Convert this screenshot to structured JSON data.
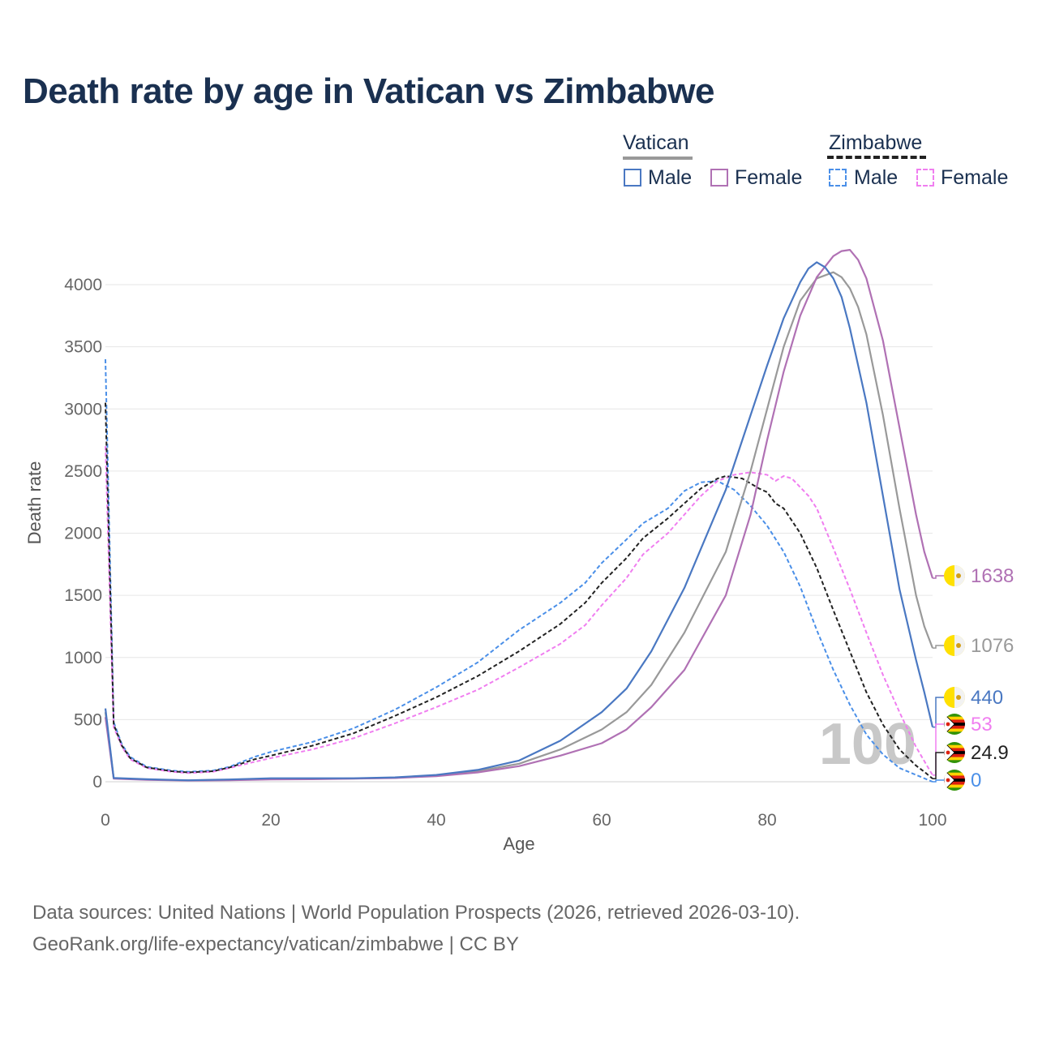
{
  "title": "Death rate by age in Vatican vs Zimbabwe",
  "legend": {
    "vatican": "Vatican",
    "zimbabwe": "Zimbabwe",
    "male": "Male",
    "female": "Female"
  },
  "footer": {
    "line1": "Data sources: United Nations | World Population Prospects (2026, retrieved 2026-03-10).",
    "line2": "GeoRank.org/life-expectancy/vatican/zimbabwe | CC BY"
  },
  "watermark": "100",
  "colors": {
    "vatican_male": "#4a78c2",
    "vatican_female": "#b071b4",
    "vatican_total": "#999999",
    "zimbabwe_male": "#4a8fe8",
    "zimbabwe_female": "#f07ef0",
    "zimbabwe_total": "#222222",
    "grid": "#e6e6e6",
    "title": "#1a3050"
  },
  "chart_data": {
    "type": "line",
    "xlabel": "Age",
    "ylabel": "Death rate",
    "xlim": [
      0,
      100
    ],
    "ylim": [
      0,
      4300
    ],
    "xticks": [
      0,
      20,
      40,
      60,
      80,
      100
    ],
    "yticks": [
      0,
      500,
      1000,
      1500,
      2000,
      2500,
      3000,
      3500,
      4000
    ],
    "grid": true,
    "legend_position": "top-right",
    "series": [
      {
        "name": "Vatican Male",
        "country": "Vatican",
        "sex": "Male",
        "style": "solid",
        "end_label": "440",
        "points": [
          [
            0,
            590
          ],
          [
            1,
            30
          ],
          [
            5,
            20
          ],
          [
            10,
            12
          ],
          [
            15,
            18
          ],
          [
            20,
            28
          ],
          [
            25,
            28
          ],
          [
            30,
            28
          ],
          [
            35,
            35
          ],
          [
            40,
            55
          ],
          [
            45,
            95
          ],
          [
            50,
            170
          ],
          [
            55,
            330
          ],
          [
            60,
            560
          ],
          [
            63,
            750
          ],
          [
            66,
            1050
          ],
          [
            70,
            1560
          ],
          [
            75,
            2350
          ],
          [
            78,
            2950
          ],
          [
            80,
            3350
          ],
          [
            82,
            3730
          ],
          [
            84,
            4020
          ],
          [
            85,
            4130
          ],
          [
            86,
            4180
          ],
          [
            87,
            4140
          ],
          [
            88,
            4050
          ],
          [
            89,
            3900
          ],
          [
            90,
            3650
          ],
          [
            92,
            3050
          ],
          [
            94,
            2300
          ],
          [
            96,
            1550
          ],
          [
            98,
            980
          ],
          [
            99,
            720
          ],
          [
            100,
            440
          ]
        ]
      },
      {
        "name": "Vatican Female",
        "country": "Vatican",
        "sex": "Female",
        "style": "solid",
        "end_label": "1638",
        "points": [
          [
            0,
            520
          ],
          [
            1,
            25
          ],
          [
            5,
            15
          ],
          [
            10,
            10
          ],
          [
            15,
            12
          ],
          [
            20,
            18
          ],
          [
            25,
            20
          ],
          [
            30,
            25
          ],
          [
            35,
            30
          ],
          [
            40,
            45
          ],
          [
            45,
            75
          ],
          [
            50,
            125
          ],
          [
            55,
            210
          ],
          [
            60,
            310
          ],
          [
            63,
            420
          ],
          [
            66,
            600
          ],
          [
            70,
            900
          ],
          [
            75,
            1500
          ],
          [
            78,
            2150
          ],
          [
            80,
            2750
          ],
          [
            82,
            3300
          ],
          [
            84,
            3750
          ],
          [
            86,
            4060
          ],
          [
            88,
            4230
          ],
          [
            89,
            4270
          ],
          [
            90,
            4280
          ],
          [
            91,
            4200
          ],
          [
            92,
            4050
          ],
          [
            94,
            3550
          ],
          [
            96,
            2850
          ],
          [
            98,
            2150
          ],
          [
            99,
            1850
          ],
          [
            100,
            1638
          ]
        ]
      },
      {
        "name": "Vatican Total",
        "country": "Vatican",
        "sex": "Total",
        "style": "solid",
        "end_label": "1076",
        "points": [
          [
            0,
            560
          ],
          [
            1,
            28
          ],
          [
            5,
            18
          ],
          [
            10,
            11
          ],
          [
            15,
            15
          ],
          [
            20,
            23
          ],
          [
            25,
            24
          ],
          [
            30,
            26
          ],
          [
            35,
            32
          ],
          [
            40,
            50
          ],
          [
            45,
            85
          ],
          [
            50,
            145
          ],
          [
            55,
            260
          ],
          [
            60,
            420
          ],
          [
            63,
            560
          ],
          [
            66,
            780
          ],
          [
            70,
            1200
          ],
          [
            75,
            1850
          ],
          [
            78,
            2500
          ],
          [
            80,
            3000
          ],
          [
            82,
            3500
          ],
          [
            84,
            3870
          ],
          [
            86,
            4050
          ],
          [
            88,
            4100
          ],
          [
            89,
            4060
          ],
          [
            90,
            3970
          ],
          [
            91,
            3820
          ],
          [
            92,
            3600
          ],
          [
            94,
            2950
          ],
          [
            96,
            2200
          ],
          [
            98,
            1500
          ],
          [
            99,
            1250
          ],
          [
            100,
            1076
          ]
        ]
      },
      {
        "name": "Zimbabwe Male",
        "country": "Zimbabwe",
        "sex": "Male",
        "style": "dashed",
        "end_label": "0",
        "points": [
          [
            0,
            3400
          ],
          [
            1,
            480
          ],
          [
            2,
            300
          ],
          [
            3,
            200
          ],
          [
            5,
            120
          ],
          [
            8,
            90
          ],
          [
            10,
            80
          ],
          [
            13,
            90
          ],
          [
            15,
            120
          ],
          [
            18,
            200
          ],
          [
            20,
            240
          ],
          [
            25,
            320
          ],
          [
            30,
            430
          ],
          [
            35,
            580
          ],
          [
            40,
            760
          ],
          [
            45,
            960
          ],
          [
            50,
            1220
          ],
          [
            55,
            1440
          ],
          [
            58,
            1600
          ],
          [
            60,
            1760
          ],
          [
            63,
            1950
          ],
          [
            65,
            2080
          ],
          [
            68,
            2200
          ],
          [
            70,
            2340
          ],
          [
            72,
            2410
          ],
          [
            74,
            2420
          ],
          [
            76,
            2350
          ],
          [
            78,
            2220
          ],
          [
            80,
            2060
          ],
          [
            82,
            1850
          ],
          [
            84,
            1570
          ],
          [
            86,
            1220
          ],
          [
            88,
            900
          ],
          [
            90,
            620
          ],
          [
            92,
            380
          ],
          [
            94,
            220
          ],
          [
            96,
            110
          ],
          [
            98,
            55
          ],
          [
            100,
            0
          ]
        ]
      },
      {
        "name": "Zimbabwe Female",
        "country": "Zimbabwe",
        "sex": "Female",
        "style": "dashed",
        "end_label": "53",
        "points": [
          [
            0,
            2700
          ],
          [
            1,
            440
          ],
          [
            2,
            280
          ],
          [
            3,
            180
          ],
          [
            5,
            110
          ],
          [
            8,
            80
          ],
          [
            10,
            70
          ],
          [
            13,
            80
          ],
          [
            15,
            110
          ],
          [
            18,
            160
          ],
          [
            20,
            190
          ],
          [
            25,
            260
          ],
          [
            30,
            350
          ],
          [
            35,
            470
          ],
          [
            40,
            600
          ],
          [
            45,
            740
          ],
          [
            50,
            920
          ],
          [
            55,
            1110
          ],
          [
            58,
            1260
          ],
          [
            60,
            1420
          ],
          [
            63,
            1640
          ],
          [
            65,
            1830
          ],
          [
            68,
            2000
          ],
          [
            70,
            2150
          ],
          [
            72,
            2300
          ],
          [
            74,
            2420
          ],
          [
            76,
            2470
          ],
          [
            78,
            2490
          ],
          [
            80,
            2470
          ],
          [
            81,
            2420
          ],
          [
            82,
            2460
          ],
          [
            83,
            2440
          ],
          [
            85,
            2300
          ],
          [
            86,
            2200
          ],
          [
            88,
            1880
          ],
          [
            90,
            1550
          ],
          [
            92,
            1200
          ],
          [
            94,
            860
          ],
          [
            96,
            560
          ],
          [
            98,
            280
          ],
          [
            100,
            53
          ]
        ]
      },
      {
        "name": "Zimbabwe Total",
        "country": "Zimbabwe",
        "sex": "Total",
        "style": "dashed",
        "end_label": "24.9",
        "points": [
          [
            0,
            3050
          ],
          [
            1,
            460
          ],
          [
            2,
            290
          ],
          [
            3,
            190
          ],
          [
            5,
            115
          ],
          [
            8,
            85
          ],
          [
            10,
            75
          ],
          [
            13,
            85
          ],
          [
            15,
            115
          ],
          [
            18,
            180
          ],
          [
            20,
            210
          ],
          [
            25,
            290
          ],
          [
            30,
            390
          ],
          [
            35,
            530
          ],
          [
            40,
            680
          ],
          [
            45,
            850
          ],
          [
            50,
            1050
          ],
          [
            55,
            1270
          ],
          [
            58,
            1440
          ],
          [
            60,
            1600
          ],
          [
            63,
            1800
          ],
          [
            65,
            1960
          ],
          [
            68,
            2120
          ],
          [
            70,
            2240
          ],
          [
            72,
            2360
          ],
          [
            74,
            2440
          ],
          [
            75,
            2460
          ],
          [
            77,
            2440
          ],
          [
            79,
            2360
          ],
          [
            80,
            2330
          ],
          [
            81,
            2240
          ],
          [
            82,
            2200
          ],
          [
            84,
            2000
          ],
          [
            86,
            1720
          ],
          [
            88,
            1380
          ],
          [
            90,
            1050
          ],
          [
            92,
            720
          ],
          [
            94,
            460
          ],
          [
            96,
            260
          ],
          [
            98,
            130
          ],
          [
            99,
            80
          ],
          [
            100,
            24.9
          ]
        ]
      }
    ]
  }
}
